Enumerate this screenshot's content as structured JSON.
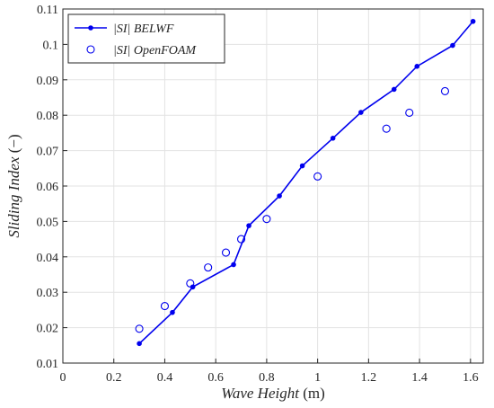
{
  "chart_data": {
    "type": "line",
    "xlabel_text": "Wave Height",
    "xlabel_unit": "(m)",
    "ylabel_text": "Sliding Index",
    "ylabel_unit": "(−)",
    "xlim": [
      0,
      1.65
    ],
    "ylim": [
      0.01,
      0.11
    ],
    "grid": true,
    "legend_position": "top-left",
    "x_ticks": [
      0,
      0.2,
      0.4,
      0.6,
      0.8,
      1,
      1.2,
      1.4,
      1.6
    ],
    "x_tick_labels": [
      "0",
      "0.2",
      "0.4",
      "0.6",
      "0.8",
      "1",
      "1.2",
      "1.4",
      "1.6"
    ],
    "y_ticks": [
      0.01,
      0.02,
      0.03,
      0.04,
      0.05,
      0.06,
      0.07,
      0.08,
      0.09,
      0.1,
      0.11
    ],
    "y_tick_labels": [
      "0.01",
      "0.02",
      "0.03",
      "0.04",
      "0.05",
      "0.06",
      "0.07",
      "0.08",
      "0.09",
      "0.1",
      "0.11"
    ],
    "series": [
      {
        "name": "|SI| BELWF",
        "style": "line-dot",
        "color": "#0000ee",
        "x": [
          0.3,
          0.43,
          0.51,
          0.67,
          0.73,
          0.85,
          0.94,
          1.06,
          1.17,
          1.3,
          1.39,
          1.53,
          1.61
        ],
        "y": [
          0.0155,
          0.0243,
          0.0315,
          0.0378,
          0.0488,
          0.0572,
          0.0657,
          0.0735,
          0.0808,
          0.0873,
          0.0938,
          0.0997,
          0.1065
        ]
      },
      {
        "name": "|SI| OpenFOAM",
        "style": "open-circle",
        "color": "#0000ee",
        "x": [
          0.3,
          0.4,
          0.5,
          0.57,
          0.64,
          0.7,
          0.8,
          1.0,
          1.27,
          1.36,
          1.5
        ],
        "y": [
          0.0197,
          0.0261,
          0.0325,
          0.037,
          0.0412,
          0.045,
          0.0507,
          0.0627,
          0.0762,
          0.0807,
          0.0868
        ]
      }
    ]
  }
}
